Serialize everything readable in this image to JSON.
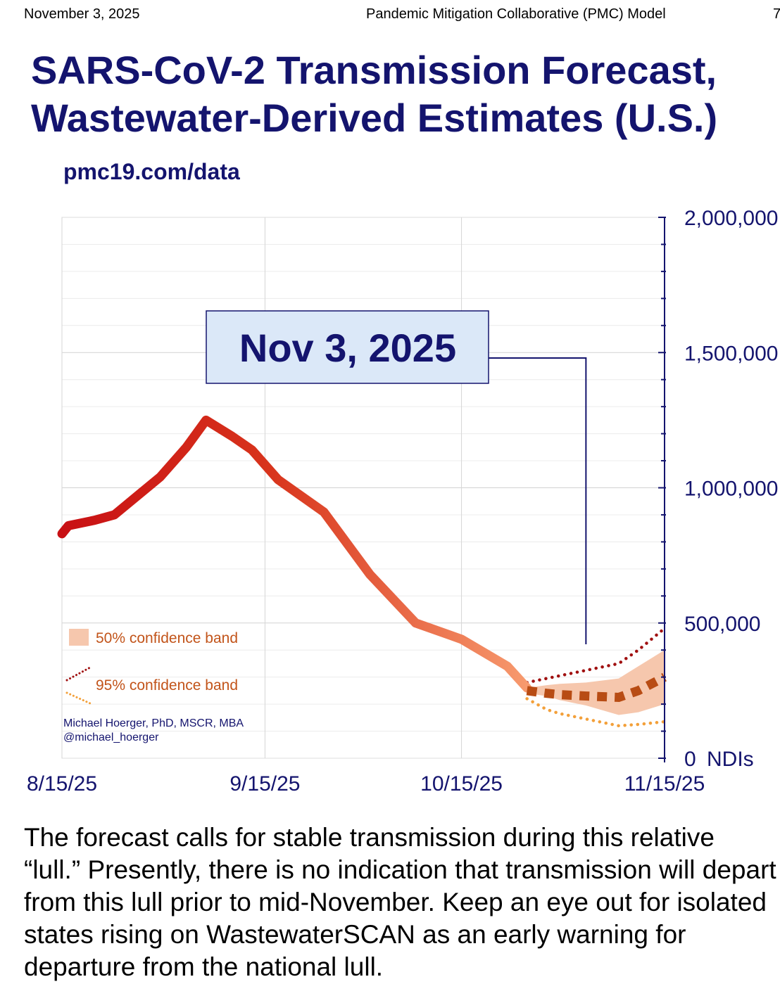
{
  "header": {
    "date": "November 3, 2025",
    "center": "Pandemic Mitigation Collaborative (PMC) Model",
    "page_number": "7"
  },
  "title_line1": "SARS-CoV-2 Transmission Forecast,",
  "title_line2": "Wastewater-Derived Estimates (U.S.)",
  "url": "pmc19.com/data",
  "caption": "The forecast calls for stable transmission during this relative “lull.” Presently, there is no indication that transmission will depart from this lull prior to mid-November. Keep an eye out for isolated states rising on WastewaterSCAN as an early warning for departure from the national lull.",
  "chart_data": {
    "type": "line",
    "title": "SARS-CoV-2 Transmission Forecast, Wastewater-Derived Estimates (U.S.)",
    "ylabel": "NDIs",
    "ylim": [
      0,
      2000000
    ],
    "xlim_days": [
      0,
      92
    ],
    "x_ticks": [
      {
        "label": "8/15/25",
        "day": 0
      },
      {
        "label": "9/15/25",
        "day": 31
      },
      {
        "label": "10/15/25",
        "day": 61
      },
      {
        "label": "11/15/25",
        "day": 92
      }
    ],
    "y_ticks": [
      {
        "label": "2,000,000",
        "value": 2000000
      },
      {
        "label": "1,500,000",
        "value": 1500000
      },
      {
        "label": "1,000,000",
        "value": 1000000
      },
      {
        "label": "500,000",
        "value": 500000
      },
      {
        "label": "0",
        "value": 0
      }
    ],
    "annotation": "Nov 3, 2025",
    "annotation_day": 80,
    "legend": [
      {
        "name": "50% confidence band",
        "style": "band"
      },
      {
        "name": "95% confidence band",
        "style": "dotted"
      }
    ],
    "credit_line1": "Michael Hoerger, PhD, MSCR, MBA",
    "credit_line2": "@michael_hoerger",
    "observed": {
      "days": [
        0,
        1,
        5,
        8,
        12,
        15,
        19,
        22,
        26,
        29,
        33,
        40,
        47,
        54,
        61,
        68,
        71
      ],
      "values": [
        830000,
        860000,
        880000,
        900000,
        980000,
        1040000,
        1150000,
        1250000,
        1190000,
        1140000,
        1030000,
        910000,
        680000,
        500000,
        440000,
        340000,
        260000
      ]
    },
    "forecast": {
      "days": [
        71,
        74,
        76,
        80,
        85,
        88,
        92
      ],
      "median": [
        250000,
        240000,
        235000,
        230000,
        225000,
        250000,
        300000
      ],
      "band50_upper": [
        260000,
        270000,
        275000,
        280000,
        295000,
        340000,
        400000
      ],
      "band50_lower": [
        240000,
        230000,
        215000,
        195000,
        160000,
        170000,
        200000
      ],
      "band95_upper": [
        280000,
        295000,
        305000,
        325000,
        350000,
        400000,
        480000
      ],
      "band95_lower": [
        220000,
        180000,
        165000,
        145000,
        120000,
        125000,
        135000
      ]
    }
  },
  "colors": {
    "title": "#14146e",
    "observed_start": "#c81014",
    "observed_end": "#f79a6e",
    "forecast_median": "#b84c14",
    "band50": "#f6c7ad",
    "band95_upper": "#a01010",
    "band95_lower": "#f3a03a",
    "axis": "#14146e",
    "legend_text": "#c2541a",
    "annotation_fill": "#dbe8f8"
  }
}
